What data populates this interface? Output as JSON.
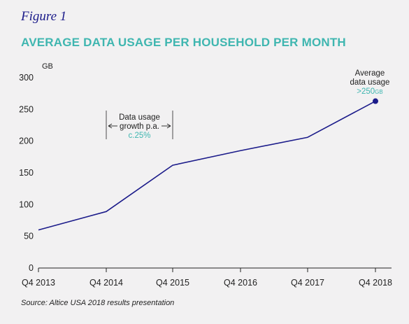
{
  "figure_label": "Figure 1",
  "source": "Source: Altice USA 2018 results presentation",
  "colors": {
    "line": "#1b1b8a",
    "accent": "#3fb6b0",
    "axis": "#222222"
  },
  "chart_data": {
    "type": "line",
    "title": "AVERAGE DATA USAGE PER HOUSEHOLD PER MONTH",
    "ylabel": "GB",
    "xlabel": "",
    "categories": [
      "Q4 2013",
      "Q4 2014",
      "Q4 2015",
      "Q4 2016",
      "Q4 2017",
      "Q4 2018"
    ],
    "series": [
      {
        "values": [
          60,
          89,
          162,
          185,
          206,
          263
        ]
      }
    ],
    "ylim": [
      0,
      300
    ],
    "yticks": [
      0,
      50,
      100,
      150,
      200,
      250,
      300
    ],
    "grid": false,
    "legend": "none",
    "annotations": {
      "growth": {
        "line1": "Data usage",
        "line2": "growth p.a.",
        "value": "c.25%"
      },
      "endpoint": {
        "line1": "Average",
        "line2": "data usage",
        "value": ">250",
        "unit": "GB"
      }
    }
  }
}
